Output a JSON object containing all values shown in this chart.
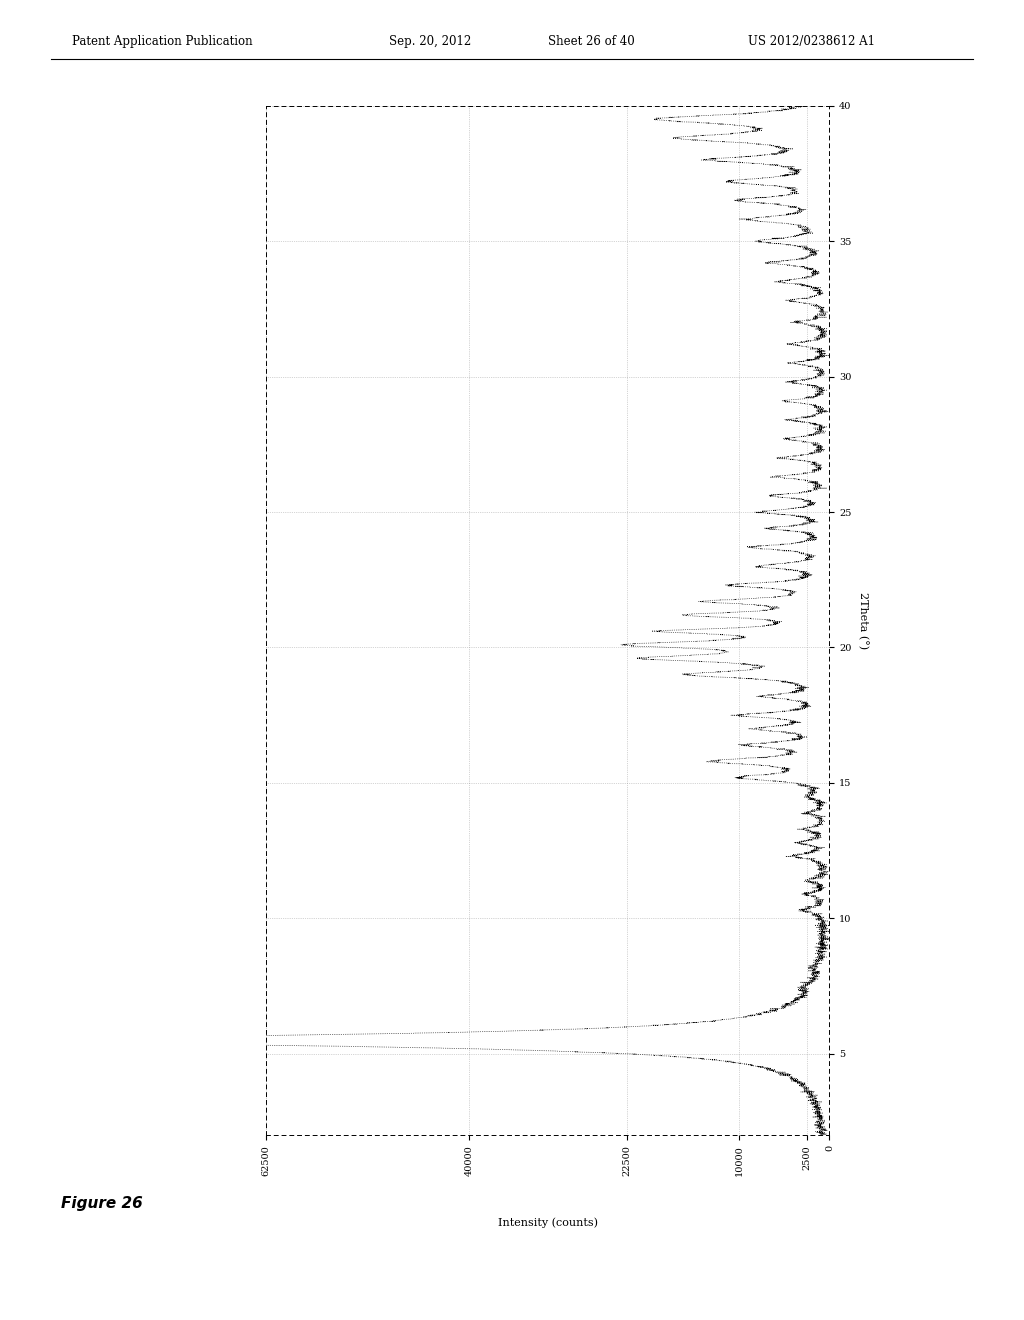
{
  "xlabel": "Intensity (counts)",
  "ylabel": "2Theta (°)",
  "xlim": [
    62500,
    0
  ],
  "ylim": [
    2,
    40
  ],
  "xticks": [
    62500,
    40000,
    22500,
    10000,
    2500,
    0
  ],
  "yticks": [
    5,
    10,
    15,
    20,
    25,
    30,
    35,
    40
  ],
  "background_color": "#ffffff",
  "line_color": "#000000",
  "header_text": "Patent Application Publication",
  "header_date": "Sep. 20, 2012",
  "header_sheet": "Sheet 26 of 40",
  "header_app": "US 2012/0238612 A1",
  "figure_label": "Figure 26"
}
